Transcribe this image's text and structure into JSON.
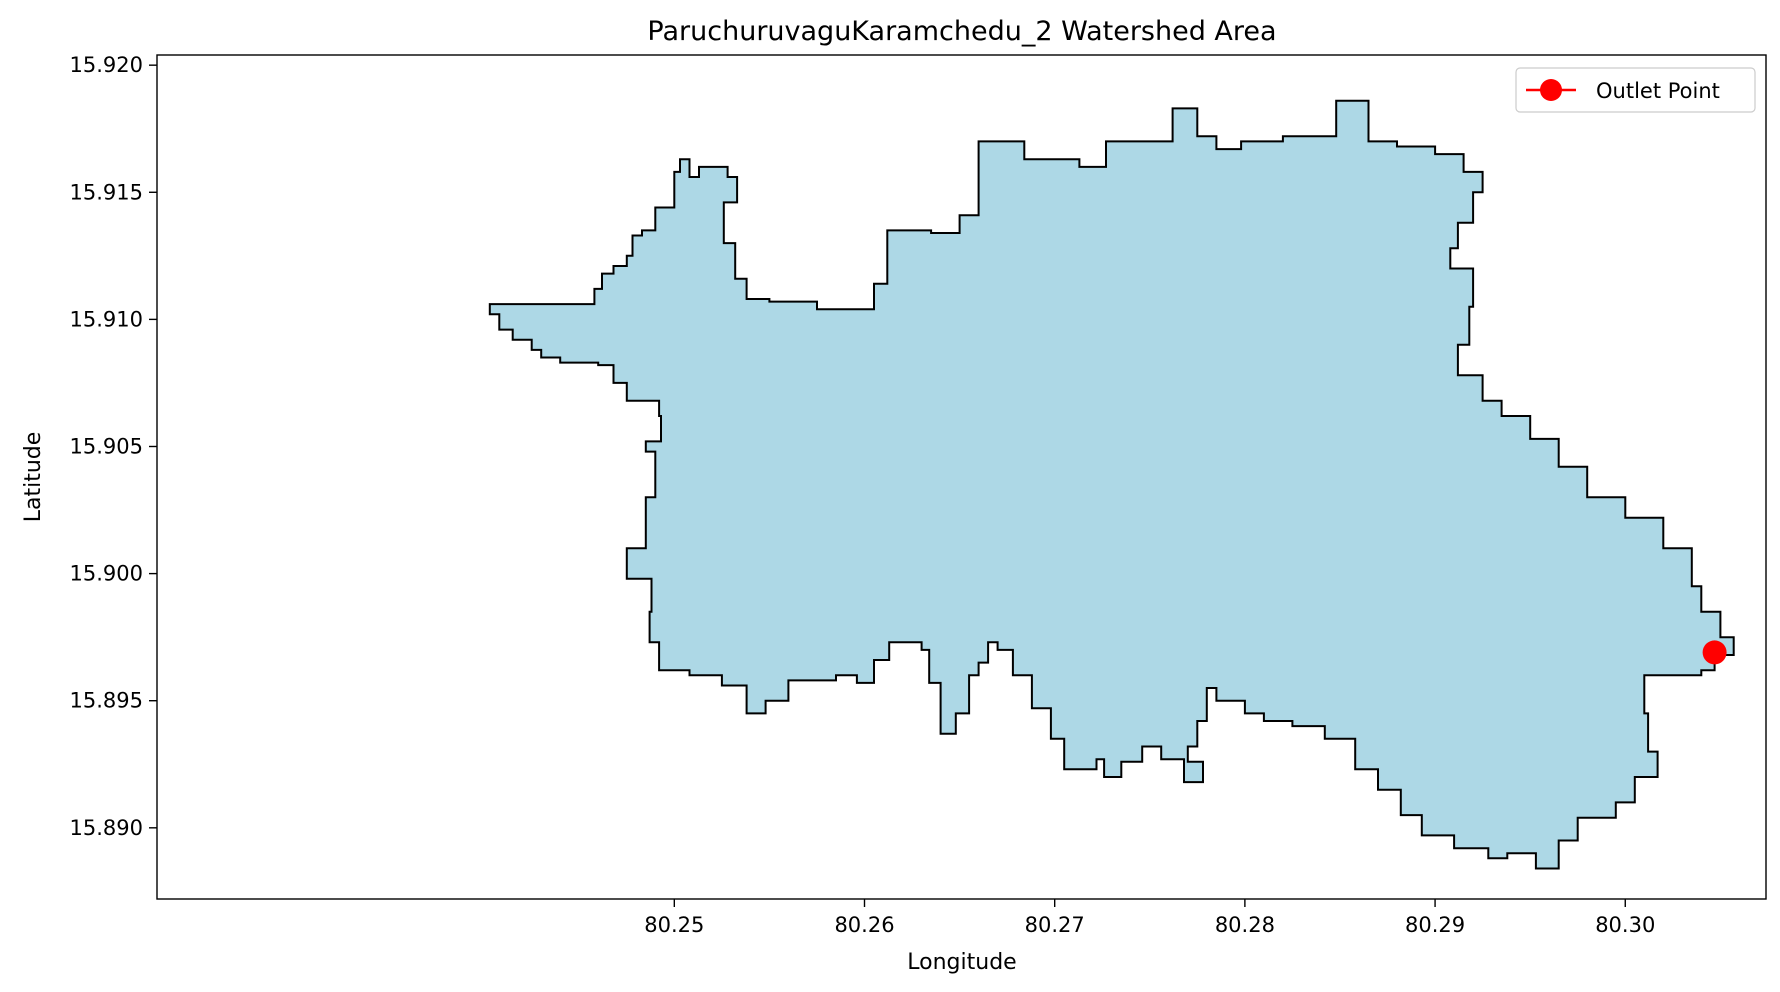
{
  "chart_data": {
    "type": "area",
    "title": "ParuchuruvaguKaramchedu_2 Watershed Area",
    "xlabel": "Longitude",
    "ylabel": "Latitude",
    "xlim": [
      80.2228,
      80.3074
    ],
    "ylim": [
      15.8872,
      15.9204
    ],
    "xticks": [
      80.25,
      80.26,
      80.27,
      80.28,
      80.29,
      80.3
    ],
    "xtick_labels": [
      "80.25",
      "80.26",
      "80.27",
      "80.28",
      "80.29",
      "80.30"
    ],
    "yticks": [
      15.89,
      15.895,
      15.9,
      15.905,
      15.91,
      15.915,
      15.92
    ],
    "ytick_labels": [
      "15.890",
      "15.895",
      "15.900",
      "15.905",
      "15.910",
      "15.915",
      "15.920"
    ],
    "grid": false,
    "legend": {
      "position": "top-right",
      "entries": [
        "Outlet Point"
      ]
    },
    "colors": {
      "fill": "#add8e6",
      "edge": "#000000",
      "outlet": "#ff0000"
    },
    "outlet_point": {
      "name": "Outlet Point",
      "x": 80.3047,
      "y": 15.8969
    },
    "watershed_boundary": [
      [
        80.2458,
        15.9106
      ],
      [
        80.2462,
        15.9112
      ],
      [
        80.2468,
        15.9118
      ],
      [
        80.2475,
        15.9121
      ],
      [
        80.2478,
        15.9125
      ],
      [
        80.2483,
        15.9133
      ],
      [
        80.249,
        15.9135
      ],
      [
        80.25,
        15.9144
      ],
      [
        80.2503,
        15.9158
      ],
      [
        80.2508,
        15.9163
      ],
      [
        80.2513,
        15.9156
      ],
      [
        80.2528,
        15.916
      ],
      [
        80.2533,
        15.9156
      ],
      [
        80.2526,
        15.9146
      ],
      [
        80.2532,
        15.913
      ],
      [
        80.2538,
        15.9116
      ],
      [
        80.255,
        15.9108
      ],
      [
        80.2575,
        15.9107
      ],
      [
        80.2585,
        15.9104
      ],
      [
        80.2605,
        15.9104
      ],
      [
        80.2612,
        15.9114
      ],
      [
        80.2635,
        15.9135
      ],
      [
        80.265,
        15.9134
      ],
      [
        80.266,
        15.9141
      ],
      [
        80.2684,
        15.917
      ],
      [
        80.2713,
        15.9163
      ],
      [
        80.2727,
        15.916
      ],
      [
        80.2762,
        15.917
      ],
      [
        80.2775,
        15.9183
      ],
      [
        80.2785,
        15.9172
      ],
      [
        80.2798,
        15.9167
      ],
      [
        80.282,
        15.917
      ],
      [
        80.2848,
        15.9172
      ],
      [
        80.2865,
        15.9186
      ],
      [
        80.288,
        15.917
      ],
      [
        80.29,
        15.9168
      ],
      [
        80.2915,
        15.9165
      ],
      [
        80.2925,
        15.9158
      ],
      [
        80.292,
        15.915
      ],
      [
        80.2912,
        15.9138
      ],
      [
        80.2908,
        15.9128
      ],
      [
        80.292,
        15.912
      ],
      [
        80.2918,
        15.9105
      ],
      [
        80.2912,
        15.909
      ],
      [
        80.2925,
        15.9078
      ],
      [
        80.2935,
        15.9068
      ],
      [
        80.295,
        15.9062
      ],
      [
        80.2965,
        15.9053
      ],
      [
        80.298,
        15.9042
      ],
      [
        80.3,
        15.903
      ],
      [
        80.302,
        15.9022
      ],
      [
        80.3035,
        15.901
      ],
      [
        80.304,
        15.8995
      ],
      [
        80.305,
        15.8985
      ],
      [
        80.3057,
        15.8975
      ],
      [
        80.3052,
        15.8968
      ],
      [
        80.3047,
        15.8969
      ],
      [
        80.304,
        15.8962
      ],
      [
        80.301,
        15.896
      ],
      [
        80.3012,
        15.8945
      ],
      [
        80.3017,
        15.893
      ],
      [
        80.3005,
        15.892
      ],
      [
        80.2995,
        15.891
      ],
      [
        80.2975,
        15.8904
      ],
      [
        80.2965,
        15.8895
      ],
      [
        80.2953,
        15.8884
      ],
      [
        80.2938,
        15.889
      ],
      [
        80.2928,
        15.8888
      ],
      [
        80.291,
        15.8892
      ],
      [
        80.2893,
        15.8897
      ],
      [
        80.2882,
        15.8905
      ],
      [
        80.287,
        15.8915
      ],
      [
        80.2858,
        15.8923
      ],
      [
        80.2842,
        15.8935
      ],
      [
        80.2825,
        15.894
      ],
      [
        80.281,
        15.8942
      ],
      [
        80.28,
        15.8945
      ],
      [
        80.2785,
        15.895
      ],
      [
        80.278,
        15.8955
      ],
      [
        80.2775,
        15.8942
      ],
      [
        80.277,
        15.8932
      ],
      [
        80.2778,
        15.8926
      ],
      [
        80.2768,
        15.8918
      ],
      [
        80.2756,
        15.8927
      ],
      [
        80.2746,
        15.8932
      ],
      [
        80.2735,
        15.8926
      ],
      [
        80.2726,
        15.892
      ],
      [
        80.2722,
        15.8927
      ],
      [
        80.2705,
        15.8923
      ],
      [
        80.2698,
        15.8935
      ],
      [
        80.2688,
        15.8947
      ],
      [
        80.2678,
        15.896
      ],
      [
        80.267,
        15.897
      ],
      [
        80.2665,
        15.8973
      ],
      [
        80.266,
        15.8965
      ],
      [
        80.2655,
        15.896
      ],
      [
        80.2648,
        15.8945
      ],
      [
        80.264,
        15.8937
      ],
      [
        80.2634,
        15.8957
      ],
      [
        80.2634,
        15.8967
      ],
      [
        80.263,
        15.897
      ],
      [
        80.2613,
        15.8973
      ],
      [
        80.2605,
        15.8966
      ],
      [
        80.2596,
        15.8957
      ],
      [
        80.2585,
        15.896
      ],
      [
        80.256,
        15.8958
      ],
      [
        80.2548,
        15.895
      ],
      [
        80.2538,
        15.8945
      ],
      [
        80.2525,
        15.8956
      ],
      [
        80.2508,
        15.896
      ],
      [
        80.2492,
        15.8962
      ],
      [
        80.2487,
        15.8973
      ],
      [
        80.2488,
        15.8985
      ],
      [
        80.2475,
        15.8998
      ],
      [
        80.2475,
        15.9006
      ],
      [
        80.2485,
        15.901
      ],
      [
        80.249,
        15.903
      ],
      [
        80.2485,
        15.9048
      ],
      [
        80.2493,
        15.9052
      ],
      [
        80.2492,
        15.9062
      ],
      [
        80.2475,
        15.9068
      ],
      [
        80.2468,
        15.9075
      ],
      [
        80.246,
        15.9082
      ],
      [
        80.244,
        15.9083
      ],
      [
        80.243,
        15.9085
      ],
      [
        80.2425,
        15.9088
      ],
      [
        80.2415,
        15.9092
      ],
      [
        80.2408,
        15.9096
      ],
      [
        80.2403,
        15.9102
      ]
    ]
  }
}
